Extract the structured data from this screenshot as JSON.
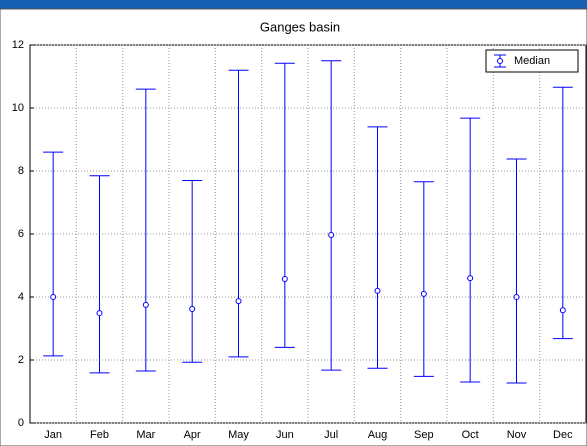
{
  "chart_data": {
    "type": "errorbar",
    "title": "Ganges basin",
    "categories": [
      "Jan",
      "Feb",
      "Mar",
      "Apr",
      "May",
      "Jun",
      "Jul",
      "Aug",
      "Sep",
      "Oct",
      "Nov",
      "Dec"
    ],
    "series": [
      {
        "name": "Median",
        "color": "#0000ff",
        "values": [
          4.0,
          3.49,
          3.75,
          3.62,
          3.87,
          4.57,
          5.97,
          4.2,
          4.1,
          4.6,
          4.0,
          3.58
        ],
        "lower": [
          2.13,
          1.59,
          1.65,
          1.93,
          2.1,
          2.4,
          1.68,
          1.74,
          1.48,
          1.3,
          1.27,
          2.68
        ],
        "upper": [
          8.6,
          7.85,
          10.6,
          7.7,
          11.2,
          11.42,
          11.5,
          9.4,
          7.66,
          9.68,
          8.38,
          10.66
        ]
      }
    ],
    "ylim": [
      0,
      12
    ],
    "yticks": [
      0,
      2,
      4,
      6,
      8,
      10,
      12
    ],
    "grid": true,
    "legend": "top-right"
  }
}
